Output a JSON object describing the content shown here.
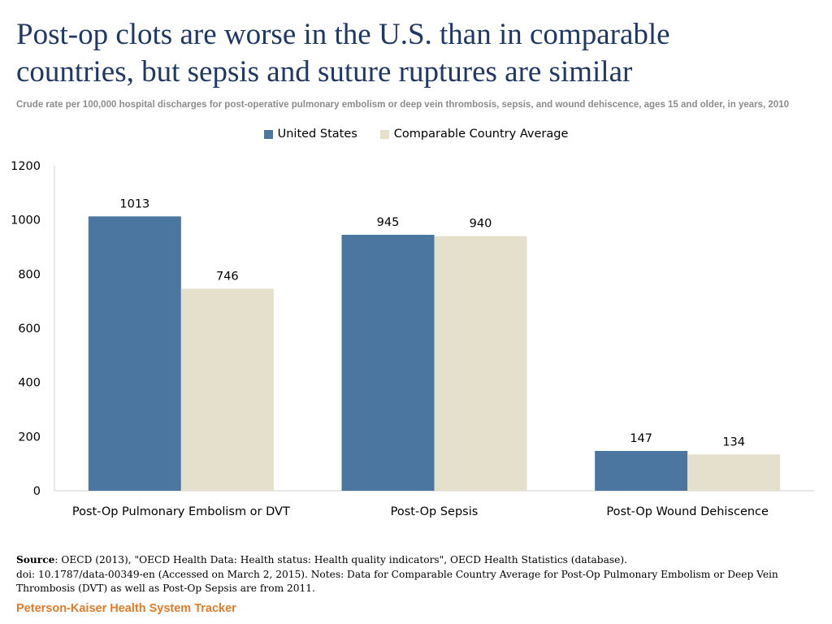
{
  "chart_data": {
    "type": "bar",
    "title": "Post-op clots are worse in the U.S. than in comparable countries, but sepsis and suture ruptures are similar",
    "title_lines": [
      "Post-op clots are worse in the U.S. than in comparable",
      "countries, but sepsis and suture ruptures are similar"
    ],
    "subtitle": "Crude rate per 100,000 hospital discharges for post-operative pulmonary embolism or deep vein thrombosis, sepsis, and wound dehiscence, ages 15 and older, in years, 2010",
    "categories": [
      "Post-Op Pulmonary Embolism or DVT",
      "Post-Op Sepsis",
      "Post-Op Wound Dehiscence"
    ],
    "series": [
      {
        "name": "United States",
        "color": "#4a76a0",
        "values": [
          1013,
          945,
          147
        ]
      },
      {
        "name": "Comparable Country Average",
        "color": "#e4e0cc",
        "values": [
          746,
          940,
          134
        ]
      }
    ],
    "y_ticks": [
      0,
      200,
      400,
      600,
      800,
      1000,
      1200
    ],
    "ylim": [
      0,
      1200
    ],
    "xlabel": "",
    "ylabel": "",
    "legend_position": "top-center",
    "grid": false
  },
  "source": {
    "label": "Source",
    "text": ": OECD (2013), \"OECD Health Data: Health status: Health quality  indicators\", OECD Health Statistics (database).",
    "line2": "doi: 10.1787/data-00349-en (Accessed on March 2,  2015). Notes: Data for Comparable Country Average for Post-Op Pulmonary Embolism or Deep Vein Thrombosis (DVT) as well as Post-Op Sepsis are from 2011."
  },
  "brand": "Peterson-Kaiser Health System Tracker"
}
